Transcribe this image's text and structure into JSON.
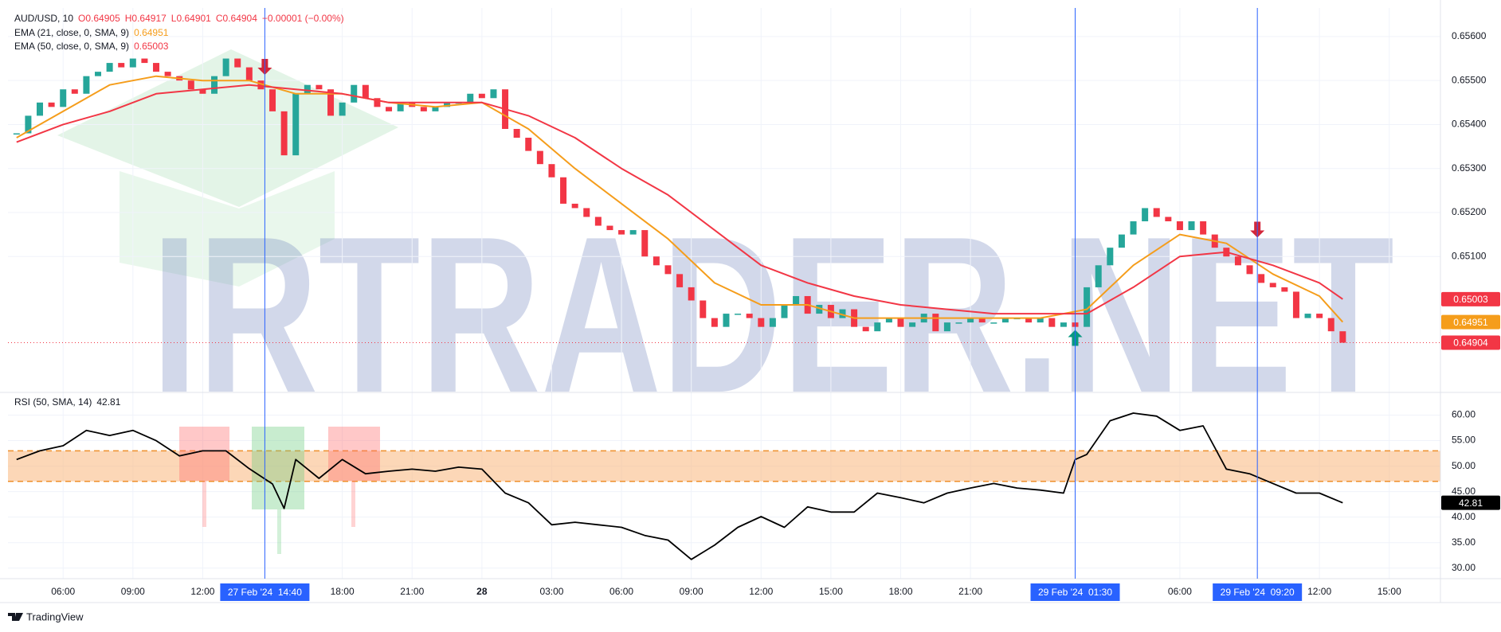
{
  "chart_data": [
    {
      "type": "candlestick",
      "title": "AUD/USD, 10",
      "ohlc": [
        "O0.64905",
        "H0.64917",
        "L0.64901",
        "C0.64904"
      ],
      "change": "−0.00001 (−0.00%)",
      "up_color": "#26a69a",
      "down_color": "#f23645",
      "x": [
        4,
        4.5,
        5,
        5.5,
        6,
        6.5,
        7,
        7.5,
        8,
        8.5,
        9,
        9.5,
        10,
        10.5,
        11,
        11.5,
        12,
        12.5,
        13,
        13.5,
        14,
        14.5,
        15,
        15.5,
        16,
        16.5,
        17,
        17.5,
        18,
        18.5,
        19,
        19.5,
        20,
        20.5,
        21,
        21.5,
        22,
        22.5,
        23,
        23.5,
        24,
        24.5,
        25,
        25.5,
        26,
        26.5,
        27,
        27.5,
        28,
        28.5,
        29,
        29.5,
        30,
        30.5,
        31,
        31.5,
        32,
        32.5,
        33,
        33.5,
        34,
        34.5,
        35,
        35.5,
        36,
        36.5,
        37,
        37.5,
        38,
        38.5,
        39,
        39.5,
        40,
        40.5,
        41,
        41.5,
        42,
        42.5,
        43,
        43.5,
        44,
        44.5,
        45,
        45.5,
        46,
        46.5,
        47,
        47.5,
        48,
        48.5,
        49,
        49.5,
        50,
        50.5,
        51,
        51.5,
        52,
        52.5,
        53,
        53.5,
        54,
        54.5,
        55,
        55.5,
        56,
        56.5,
        57,
        57.5,
        58,
        58.5,
        59,
        59.5,
        60,
        60.5,
        61
      ],
      "values": [
        0.6538,
        0.6542,
        0.6545,
        0.6544,
        0.6548,
        0.6547,
        0.6551,
        0.6552,
        0.6554,
        0.6553,
        0.6555,
        0.6554,
        0.6552,
        0.6551,
        0.655,
        0.6548,
        0.6547,
        0.6551,
        0.6555,
        0.6553,
        0.655,
        0.6548,
        0.6543,
        0.6533,
        0.6547,
        0.6549,
        0.6548,
        0.6542,
        0.6545,
        0.6549,
        0.6546,
        0.6544,
        0.6543,
        0.6545,
        0.6544,
        0.6543,
        0.6544,
        0.6545,
        0.6545,
        0.6547,
        0.6546,
        0.6548,
        0.6539,
        0.6537,
        0.6534,
        0.6531,
        0.6528,
        0.6522,
        0.6521,
        0.6519,
        0.6517,
        0.6516,
        0.6515,
        0.6516,
        0.651,
        0.6508,
        0.6506,
        0.6503,
        0.65,
        0.6496,
        0.6494,
        0.6497,
        0.6497,
        0.6496,
        0.6494,
        0.6496,
        0.6499,
        0.6501,
        0.6497,
        0.6499,
        0.6496,
        0.6498,
        0.6494,
        0.6493,
        0.6495,
        0.6496,
        0.6494,
        0.6495,
        0.6497,
        0.6493,
        0.6495,
        0.6495,
        0.6496,
        0.6495,
        0.6495,
        0.6496,
        0.6496,
        0.6495,
        0.6496,
        0.6494,
        0.6495,
        0.6494,
        0.6503,
        0.6508,
        0.6512,
        0.6515,
        0.6518,
        0.6521,
        0.6519,
        0.6518,
        0.6516,
        0.6518,
        0.6515,
        0.6512,
        0.651,
        0.6508,
        0.6506,
        0.6504,
        0.6503,
        0.6502,
        0.6496,
        0.6497,
        0.6496,
        0.6493,
        0.64904
      ],
      "series": [
        {
          "name": "EMA (21, close, 0, SMA, 9)",
          "color": "#f59d1b",
          "x": [
            4,
            6,
            8,
            10,
            12,
            14,
            16,
            18,
            20,
            22,
            24,
            26,
            28,
            30,
            32,
            34,
            36,
            38,
            40,
            42,
            44,
            46,
            48,
            50,
            52,
            54,
            56,
            58,
            60,
            61
          ],
          "values": [
            0.6537,
            0.6543,
            0.6549,
            0.6551,
            0.655,
            0.655,
            0.6547,
            0.6547,
            0.6545,
            0.6544,
            0.6545,
            0.6539,
            0.653,
            0.6522,
            0.6514,
            0.6504,
            0.6499,
            0.6499,
            0.6496,
            0.6496,
            0.6496,
            0.6496,
            0.6496,
            0.6498,
            0.6508,
            0.6515,
            0.6513,
            0.6506,
            0.6501,
            0.64951
          ]
        },
        {
          "name": "EMA (50, close, 0, SMA, 9)",
          "color": "#f23645",
          "x": [
            4,
            6,
            8,
            10,
            12,
            14,
            16,
            18,
            20,
            22,
            24,
            26,
            28,
            30,
            32,
            34,
            36,
            38,
            40,
            42,
            44,
            46,
            48,
            50,
            52,
            54,
            56,
            58,
            60,
            61
          ],
          "values": [
            0.6536,
            0.654,
            0.6543,
            0.6547,
            0.6548,
            0.6549,
            0.6548,
            0.6547,
            0.6545,
            0.6545,
            0.6545,
            0.6542,
            0.6537,
            0.653,
            0.6524,
            0.6516,
            0.6508,
            0.6504,
            0.6501,
            0.6499,
            0.6498,
            0.6497,
            0.6497,
            0.6497,
            0.6503,
            0.651,
            0.6511,
            0.6508,
            0.6504,
            0.65003
          ]
        }
      ],
      "xlim": [
        3.63,
        65.2
      ],
      "ylim": [
        0.64791,
        0.65665
      ],
      "yticks": [
        {
          "value": 0.656,
          "label": "0.65600"
        },
        {
          "value": 0.655,
          "label": "0.65500"
        },
        {
          "value": 0.654,
          "label": "0.65400"
        },
        {
          "value": 0.653,
          "label": "0.65300"
        },
        {
          "value": 0.652,
          "label": "0.65200"
        },
        {
          "value": 0.651,
          "label": "0.65100"
        }
      ],
      "grid": true,
      "arrows": [
        {
          "x": 14.67,
          "y": 0.65513,
          "direction": "down",
          "color": "#d3263a"
        },
        {
          "x": 49.5,
          "y": 0.64933,
          "direction": "up",
          "color": "#089981"
        },
        {
          "x": 57.33,
          "y": 0.65143,
          "direction": "down",
          "color": "#d3263a"
        }
      ],
      "watermark": "IRTRADER.NET"
    },
    {
      "type": "line",
      "title": "RSI (50, SMA, 14)",
      "color": "#000000",
      "x": [
        4,
        5,
        6,
        7,
        8,
        9,
        10,
        11,
        12,
        13,
        14,
        15,
        15.5,
        16,
        17,
        18,
        19,
        20,
        21,
        22,
        23,
        24,
        25,
        26,
        27,
        28,
        29,
        30,
        31,
        32,
        33,
        34,
        35,
        36,
        37,
        38,
        39,
        40,
        41,
        42,
        43,
        44,
        45,
        46,
        47,
        48,
        49,
        49.5,
        50,
        51,
        52,
        53,
        54,
        55,
        56,
        57,
        58,
        59,
        60,
        61
      ],
      "values": [
        51.3,
        53,
        54,
        57,
        56,
        57,
        55,
        52,
        53,
        53,
        49.5,
        46.5,
        41.7,
        51.3,
        47.6,
        51.3,
        48.5,
        49,
        49.4,
        49,
        49.8,
        49.4,
        44.7,
        42.8,
        38.5,
        39,
        38.5,
        38,
        36.4,
        35.5,
        31.7,
        34.5,
        38,
        40.1,
        38,
        42,
        41,
        41,
        44.7,
        43.8,
        42.8,
        44.7,
        45.7,
        46.6,
        45.7,
        45.3,
        44.7,
        51.3,
        52.3,
        58.9,
        60.4,
        59.8,
        57,
        57.9,
        49.4,
        48.5,
        46.6,
        44.7,
        44.7,
        42.81
      ],
      "band": [
        47,
        53
      ],
      "band_color": "#f9b77c",
      "xlim": [
        3.63,
        65.2
      ],
      "ylim": [
        27.93,
        64.45
      ],
      "yticks": [
        {
          "value": 60,
          "label": "60.00"
        },
        {
          "value": 55,
          "label": "55.00"
        },
        {
          "value": 50,
          "label": "50.00"
        },
        {
          "value": 45,
          "label": "45.00"
        },
        {
          "value": 40,
          "label": "40.00"
        },
        {
          "value": 35,
          "label": "35.00"
        },
        {
          "value": 30,
          "label": "30.00"
        }
      ],
      "xticks": [
        {
          "value": 6,
          "label": "06:00"
        },
        {
          "value": 9,
          "label": "09:00"
        },
        {
          "value": 12,
          "label": "12:00"
        },
        {
          "value": 18,
          "label": "18:00"
        },
        {
          "value": 21,
          "label": "21:00"
        },
        {
          "value": 24,
          "label": "28",
          "bold": true
        },
        {
          "value": 27,
          "label": "03:00"
        },
        {
          "value": 30,
          "label": "06:00"
        },
        {
          "value": 33,
          "label": "09:00"
        },
        {
          "value": 36,
          "label": "12:00"
        },
        {
          "value": 39,
          "label": "15:00"
        },
        {
          "value": 42,
          "label": "18:00"
        },
        {
          "value": 45,
          "label": "21:00"
        },
        {
          "value": 54,
          "label": "06:00"
        },
        {
          "value": 60,
          "label": "12:00"
        },
        {
          "value": 63,
          "label": "15:00"
        }
      ],
      "grid": true,
      "vlines": [
        {
          "value": 14.67,
          "label": "27 Feb '24  14:40"
        },
        {
          "value": 49.5,
          "label": "29 Feb '24  01:30"
        },
        {
          "value": 57.33,
          "label": "29 Feb '24  09:20"
        }
      ]
    }
  ],
  "footer": "TradingView"
}
